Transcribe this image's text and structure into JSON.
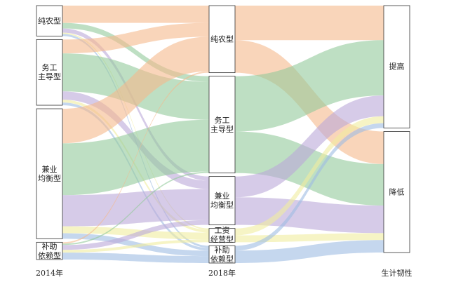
{
  "chart_data": {
    "type": "sankey",
    "columns": [
      {
        "label": "2014年",
        "nodes": [
          "纯农型",
          "务工\n主导型",
          "兼业\n均衡型",
          "补助\n依赖型"
        ]
      },
      {
        "label": "2018年",
        "nodes": [
          "纯农型",
          "务工\n主导型",
          "兼业\n均衡型",
          "工资\n经营型",
          "补助\n依赖型"
        ]
      },
      {
        "label": "生计韧性",
        "nodes": [
          "提高",
          "降低"
        ]
      }
    ],
    "flow_colors": [
      "#f5b98c",
      "#92c99b",
      "#bba8d8",
      "#f0ec9e",
      "#9fbde2"
    ],
    "flows": [
      [
        [
          25,
          8,
          6,
          2,
          3
        ],
        [
          20,
          55,
          12,
          4,
          4
        ],
        [
          50,
          75,
          45,
          10,
          8
        ],
        [
          2,
          2,
          7,
          4,
          10
        ]
      ],
      [
        [
          50,
          47
        ],
        [
          80,
          60
        ],
        [
          30,
          40
        ],
        [
          10,
          10
        ],
        [
          7,
          18
        ]
      ]
    ]
  }
}
